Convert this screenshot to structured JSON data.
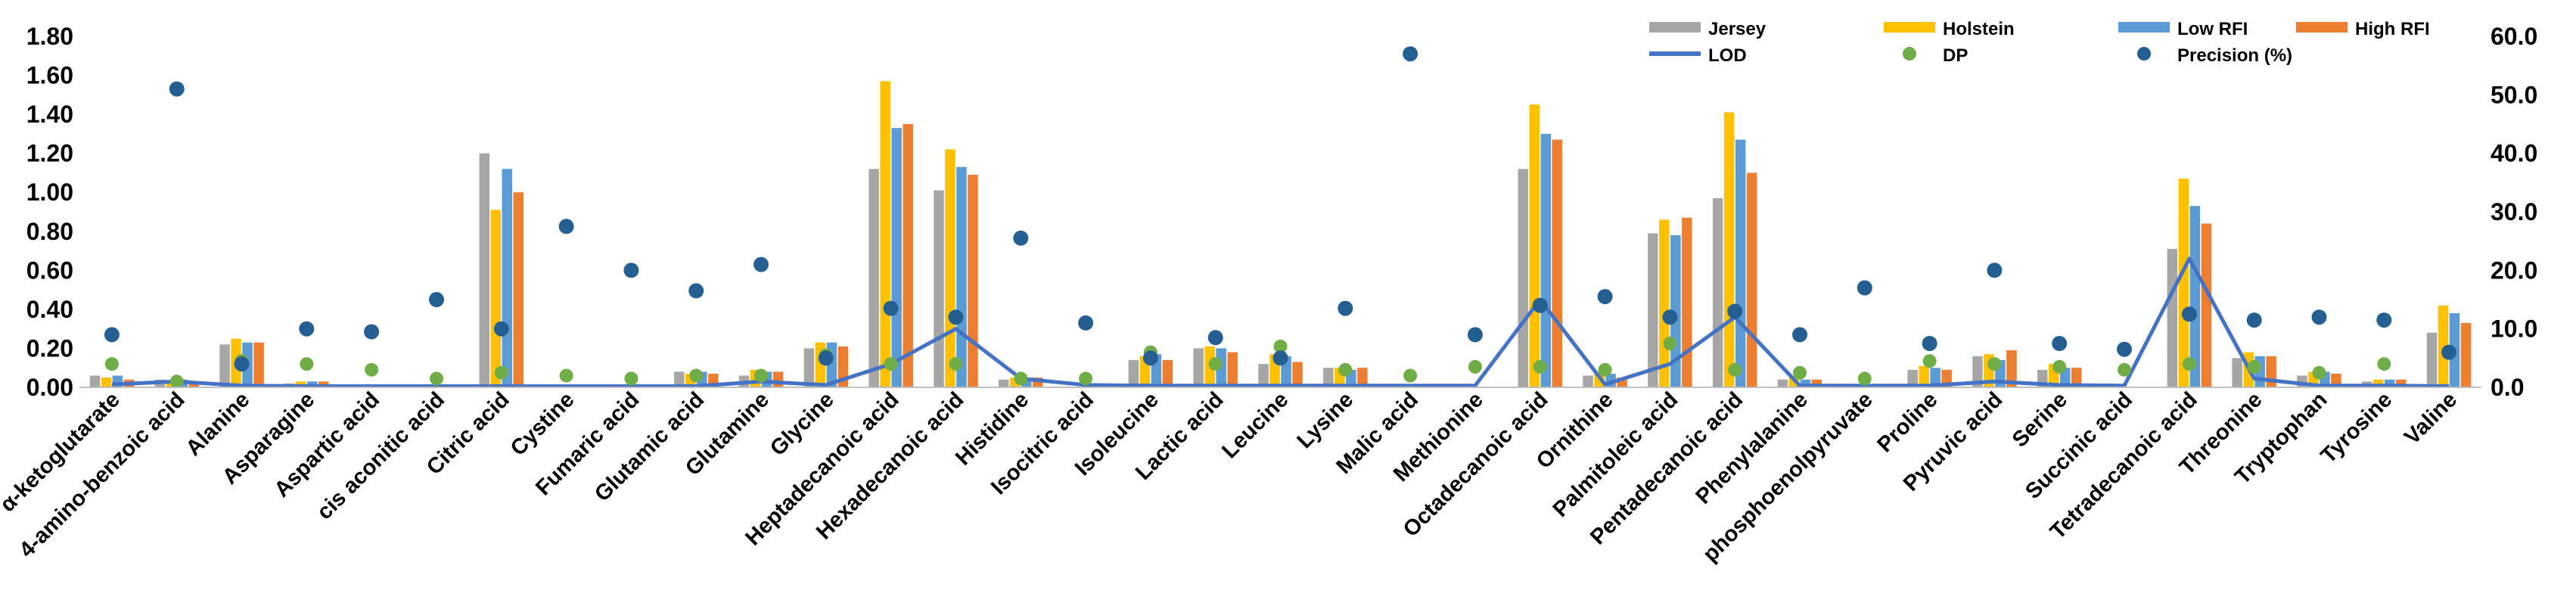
{
  "chart_data": {
    "type": "bar",
    "title": "",
    "xlabel": "",
    "ylabel": "",
    "y2label": "",
    "ylim": [
      0,
      1.8
    ],
    "y2lim": [
      0,
      60
    ],
    "yticks": [
      "0.00",
      "0.20",
      "0.40",
      "0.60",
      "0.80",
      "1.00",
      "1.20",
      "1.40",
      "1.60",
      "1.80"
    ],
    "y2ticks": [
      "0.0",
      "10.0",
      "20.0",
      "30.0",
      "40.0",
      "50.0",
      "60.0"
    ],
    "colors": {
      "Jersey": "#a6a6a6",
      "Holstein": "#ffc000",
      "Low RFI": "#5b9bd5",
      "High RFI": "#ed7d31",
      "LOD": "#4472c4",
      "DP": "#70ad47",
      "Precision (%)": "#255e91"
    },
    "legend": [
      "Jersey",
      "Holstein",
      "Low RFI",
      "High RFI",
      "LOD",
      "DP",
      "Precision (%)"
    ],
    "legend_position": "top-right",
    "categories": [
      "α-ketoglutarate",
      "4-amino-benzoic acid",
      "Alanine",
      "Asparagine",
      "Aspartic acid",
      "cis aconitic acid",
      "Citric acid",
      "Cystine",
      "Fumaric acid",
      "Glutamic acid",
      "Glutamine",
      "Glycine",
      "Heptadecanoic acid",
      "Hexadecanoic acid",
      "Histidine",
      "Isocitric acid",
      "Isoleucine",
      "Lactic acid",
      "Leucine",
      "Lysine",
      "Malic acid",
      "Methionine",
      "Octadecanoic acid",
      "Ornithine",
      "Palmitoleic acid",
      "Pentadecanoic acid",
      "Phenylalanine",
      "phosphoenolpyruvate",
      "Proline",
      "Pyruvic acid",
      "Serine",
      "Succinic acid",
      "Tetradecanoic acid",
      "Threonine",
      "Tryptophan",
      "Tyrosine",
      "Valine"
    ],
    "series": [
      {
        "name": "Jersey",
        "axis": "left",
        "kind": "bar",
        "values": [
          0.06,
          0.04,
          0.22,
          0.02,
          0.0,
          0.0,
          1.2,
          0.0,
          0.0,
          0.08,
          0.06,
          0.2,
          1.12,
          1.01,
          0.04,
          0.0,
          0.14,
          0.2,
          0.12,
          0.1,
          0.0,
          0.0,
          1.12,
          0.06,
          0.79,
          0.97,
          0.04,
          0.0,
          0.09,
          0.16,
          0.09,
          0.0,
          0.71,
          0.15,
          0.06,
          0.03,
          0.28
        ]
      },
      {
        "name": "Holstein",
        "axis": "left",
        "kind": "bar",
        "values": [
          0.05,
          0.03,
          0.25,
          0.03,
          0.0,
          0.0,
          0.91,
          0.0,
          0.0,
          0.07,
          0.09,
          0.23,
          1.57,
          1.22,
          0.05,
          0.0,
          0.16,
          0.21,
          0.17,
          0.1,
          0.0,
          0.0,
          1.45,
          0.08,
          0.86,
          1.41,
          0.06,
          0.0,
          0.11,
          0.17,
          0.12,
          0.0,
          1.07,
          0.18,
          0.08,
          0.04,
          0.42
        ]
      },
      {
        "name": "Low RFI",
        "axis": "left",
        "kind": "bar",
        "values": [
          0.06,
          0.04,
          0.23,
          0.03,
          0.0,
          0.0,
          1.12,
          0.0,
          0.0,
          0.08,
          0.08,
          0.23,
          1.33,
          1.13,
          0.04,
          0.0,
          0.17,
          0.2,
          0.16,
          0.09,
          0.0,
          0.0,
          1.3,
          0.07,
          0.78,
          1.27,
          0.04,
          0.0,
          0.1,
          0.14,
          0.1,
          0.0,
          0.93,
          0.16,
          0.08,
          0.04,
          0.38
        ]
      },
      {
        "name": "High RFI",
        "axis": "left",
        "kind": "bar",
        "values": [
          0.04,
          0.02,
          0.23,
          0.03,
          0.0,
          0.0,
          1.0,
          0.0,
          0.0,
          0.07,
          0.08,
          0.21,
          1.35,
          1.09,
          0.05,
          0.0,
          0.14,
          0.18,
          0.13,
          0.1,
          0.0,
          0.0,
          1.27,
          0.05,
          0.87,
          1.1,
          0.04,
          0.0,
          0.09,
          0.19,
          0.1,
          0.0,
          0.84,
          0.16,
          0.07,
          0.04,
          0.33
        ]
      },
      {
        "name": "LOD",
        "axis": "right",
        "kind": "line",
        "values": [
          0.5,
          1.0,
          0.3,
          0.2,
          0.2,
          0.2,
          0.2,
          0.2,
          0.2,
          0.2,
          1.0,
          0.4,
          4.0,
          10.0,
          1.5,
          0.4,
          0.3,
          0.3,
          0.3,
          0.3,
          0.3,
          0.3,
          15.0,
          0.5,
          4.0,
          12.0,
          0.3,
          0.3,
          0.3,
          1.0,
          0.4,
          0.3,
          22.0,
          1.5,
          0.3,
          0.3,
          0.2
        ]
      },
      {
        "name": "DP",
        "axis": "right",
        "kind": "scatter",
        "values": [
          4.0,
          1.0,
          4.5,
          4.0,
          3.0,
          1.5,
          2.5,
          2.0,
          1.5,
          2.0,
          2.0,
          5.5,
          4.0,
          4.0,
          1.5,
          1.5,
          6.0,
          4.0,
          7.0,
          3.0,
          2.0,
          3.5,
          3.5,
          3.0,
          7.5,
          3.0,
          2.5,
          1.5,
          4.5,
          4.0,
          3.5,
          3.0,
          4.0,
          3.5,
          2.5,
          4.0,
          6.0
        ]
      },
      {
        "name": "Precision (%)",
        "axis": "right",
        "kind": "scatter",
        "values": [
          9.0,
          51.0,
          4.0,
          10.0,
          9.5,
          15.0,
          10.0,
          27.5,
          20.0,
          16.5,
          21.0,
          5.0,
          13.5,
          12.0,
          25.5,
          11.0,
          5.0,
          8.5,
          5.0,
          13.5,
          57.0,
          9.0,
          14.0,
          15.5,
          12.0,
          13.0,
          9.0,
          17.0,
          7.5,
          20.0,
          7.5,
          6.5,
          12.5,
          11.5,
          12.0,
          11.5,
          6.0
        ]
      }
    ]
  }
}
